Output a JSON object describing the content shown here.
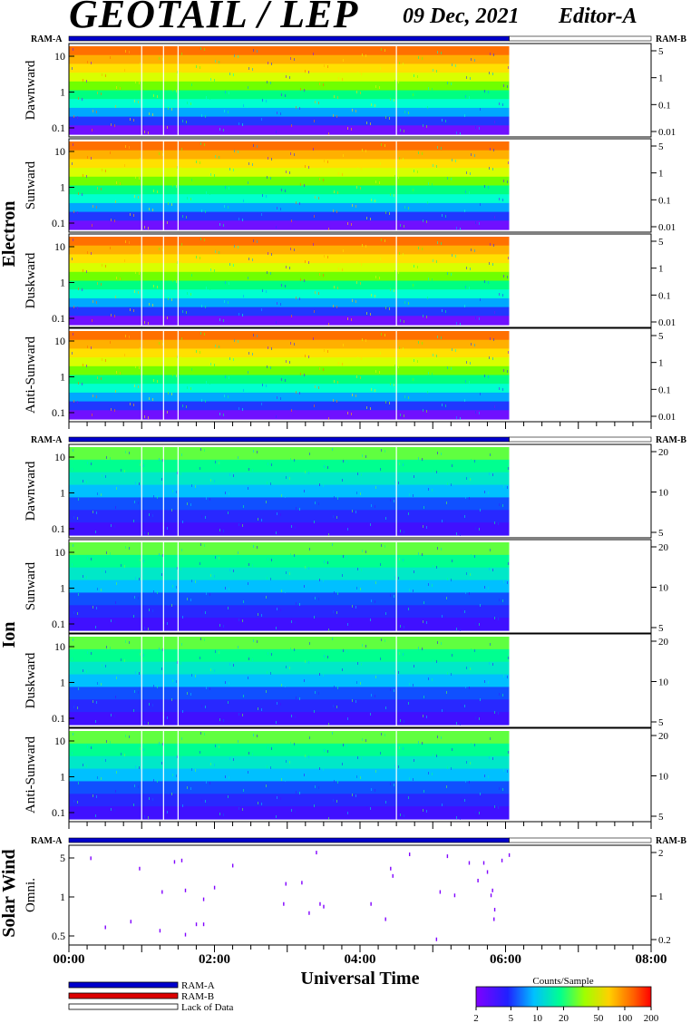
{
  "header": {
    "title": "GEOTAIL / LEP",
    "date": "09 Dec, 2021",
    "editor": "Editor-A"
  },
  "ram_labels": {
    "left": "RAM-A",
    "right": "RAM-B"
  },
  "group_labels": {
    "electron": "Electron",
    "ion": "Ion",
    "solar_wind": "Solar Wind"
  },
  "electron_panels": [
    {
      "name": "Dawnward",
      "left_ticks": [
        "10",
        "1",
        "0.1"
      ],
      "right_ticks": [
        "5",
        "1",
        "0.1",
        "0.01"
      ]
    },
    {
      "name": "Sunward",
      "left_ticks": [
        "10",
        "1",
        "0.1"
      ],
      "right_ticks": [
        "5",
        "1",
        "0.1",
        "0.01"
      ]
    },
    {
      "name": "Duskward",
      "left_ticks": [
        "10",
        "1",
        "0.1"
      ],
      "right_ticks": [
        "5",
        "1",
        "0.1",
        "0.01"
      ]
    },
    {
      "name": "Anti-Sunward",
      "left_ticks": [
        "10",
        "1",
        "0.1"
      ],
      "right_ticks": [
        "5",
        "1",
        "0.1",
        "0.01"
      ]
    }
  ],
  "ion_panels": [
    {
      "name": "Dawnward",
      "left_ticks": [
        "10",
        "1",
        "0.1"
      ],
      "right_ticks": [
        "20",
        "10",
        "5"
      ]
    },
    {
      "name": "Sunward",
      "left_ticks": [
        "10",
        "1",
        "0.1"
      ],
      "right_ticks": [
        "20",
        "10",
        "5"
      ]
    },
    {
      "name": "Duskward",
      "left_ticks": [
        "10",
        "1",
        "0.1"
      ],
      "right_ticks": [
        "20",
        "10",
        "5"
      ]
    },
    {
      "name": "Anti-Sunward",
      "left_ticks": [
        "10",
        "1",
        "0.1"
      ],
      "right_ticks": [
        "20",
        "10",
        "5"
      ]
    }
  ],
  "solar_wind_panel": {
    "name": "Omni.",
    "left_ticks": [
      "5",
      "1",
      "0.5"
    ],
    "right_ticks": [
      "2",
      "1",
      "0.2"
    ]
  },
  "chart_data": {
    "type": "heatmap",
    "xlabel": "Universal Time",
    "x_ticks": [
      "00:00",
      "02:00",
      "04:00",
      "06:00",
      "08:00"
    ],
    "xlim_hours": [
      0,
      8
    ],
    "data_end_hours": 6.05,
    "data_gap_hours": [
      1.0,
      1.3,
      1.5,
      4.5
    ],
    "colorbar": {
      "label": "Counts/Sample",
      "ticks": [
        "2",
        "5",
        "10",
        "20",
        "50",
        "100",
        "200"
      ],
      "range": [
        2,
        200
      ],
      "scale": "log"
    },
    "legend": [
      {
        "label": "RAM-A",
        "color": "#0000cc"
      },
      {
        "label": "RAM-B",
        "color": "#dd0000"
      },
      {
        "label": "Lack of Data",
        "color": "#ffffff"
      }
    ],
    "solar_wind_points": [
      [
        0.3,
        6.0
      ],
      [
        0.5,
        0.4
      ],
      [
        0.85,
        0.5
      ],
      [
        0.97,
        4.0
      ],
      [
        1.25,
        0.35
      ],
      [
        1.28,
        1.6
      ],
      [
        1.45,
        5.2
      ],
      [
        1.55,
        5.5
      ],
      [
        1.6,
        1.7
      ],
      [
        1.6,
        0.3
      ],
      [
        1.75,
        0.45
      ],
      [
        1.85,
        0.45
      ],
      [
        1.85,
        1.2
      ],
      [
        2.0,
        1.9
      ],
      [
        2.25,
        4.5
      ],
      [
        2.95,
        1.0
      ],
      [
        2.98,
        2.2
      ],
      [
        3.2,
        2.3
      ],
      [
        3.3,
        0.7
      ],
      [
        3.4,
        7.5
      ],
      [
        3.45,
        1.0
      ],
      [
        3.5,
        0.9
      ],
      [
        4.15,
        1.0
      ],
      [
        4.35,
        0.55
      ],
      [
        4.42,
        4.0
      ],
      [
        4.45,
        3.0
      ],
      [
        4.68,
        7.0
      ],
      [
        5.1,
        1.6
      ],
      [
        5.2,
        6.5
      ],
      [
        5.3,
        1.4
      ],
      [
        5.62,
        2.5
      ],
      [
        5.7,
        5.0
      ],
      [
        5.75,
        3.5
      ],
      [
        5.8,
        1.4
      ],
      [
        5.82,
        1.7
      ],
      [
        5.84,
        0.55
      ],
      [
        5.85,
        0.8
      ],
      [
        5.95,
        5.5
      ],
      [
        6.05,
        6.8
      ],
      [
        5.05,
        0.25
      ],
      [
        5.5,
        5.0
      ]
    ]
  }
}
